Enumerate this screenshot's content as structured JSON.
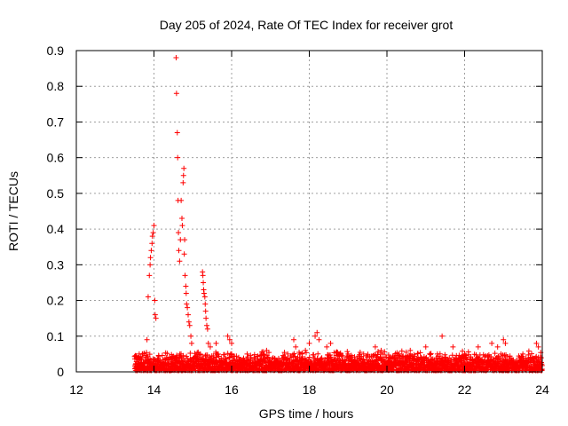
{
  "chart_data": {
    "type": "scatter",
    "title": "Day 205 of 2024, Rate Of TEC Index for receiver grot",
    "xlabel": "GPS time / hours",
    "ylabel": "ROTI / TECUs",
    "xlim": [
      12,
      24
    ],
    "ylim": [
      0,
      0.9
    ],
    "x_ticks": [
      12,
      14,
      16,
      18,
      20,
      22,
      24
    ],
    "y_ticks": [
      0,
      0.1,
      0.2,
      0.3,
      0.4,
      0.5,
      0.6,
      0.7,
      0.8,
      0.9
    ],
    "grid": true,
    "marker": "+",
    "series": [
      {
        "name": "ROTI",
        "color": "#ff0000",
        "baseline_range_hours": [
          13.5,
          24.0
        ],
        "baseline_typical_max": 0.06,
        "points": [
          {
            "x": 13.55,
            "y": 0.04
          },
          {
            "x": 13.62,
            "y": 0.05
          },
          {
            "x": 13.7,
            "y": 0.05
          },
          {
            "x": 13.82,
            "y": 0.09
          },
          {
            "x": 13.85,
            "y": 0.21
          },
          {
            "x": 13.88,
            "y": 0.27
          },
          {
            "x": 13.9,
            "y": 0.3
          },
          {
            "x": 13.91,
            "y": 0.32
          },
          {
            "x": 13.93,
            "y": 0.34
          },
          {
            "x": 13.95,
            "y": 0.36
          },
          {
            "x": 13.96,
            "y": 0.38
          },
          {
            "x": 13.98,
            "y": 0.39
          },
          {
            "x": 14.0,
            "y": 0.41
          },
          {
            "x": 14.02,
            "y": 0.2
          },
          {
            "x": 14.03,
            "y": 0.16
          },
          {
            "x": 14.05,
            "y": 0.15
          },
          {
            "x": 14.55,
            "y": 0.03
          },
          {
            "x": 14.57,
            "y": 0.88
          },
          {
            "x": 14.58,
            "y": 0.78
          },
          {
            "x": 14.6,
            "y": 0.67
          },
          {
            "x": 14.61,
            "y": 0.6
          },
          {
            "x": 14.62,
            "y": 0.48
          },
          {
            "x": 14.63,
            "y": 0.39
          },
          {
            "x": 14.64,
            "y": 0.34
          },
          {
            "x": 14.66,
            "y": 0.31
          },
          {
            "x": 14.68,
            "y": 0.37
          },
          {
            "x": 14.7,
            "y": 0.48
          },
          {
            "x": 14.72,
            "y": 0.43
          },
          {
            "x": 14.73,
            "y": 0.41
          },
          {
            "x": 14.75,
            "y": 0.53
          },
          {
            "x": 14.76,
            "y": 0.55
          },
          {
            "x": 14.77,
            "y": 0.57
          },
          {
            "x": 14.78,
            "y": 0.33
          },
          {
            "x": 14.79,
            "y": 0.37
          },
          {
            "x": 14.8,
            "y": 0.27
          },
          {
            "x": 14.82,
            "y": 0.24
          },
          {
            "x": 14.83,
            "y": 0.22
          },
          {
            "x": 14.84,
            "y": 0.19
          },
          {
            "x": 14.86,
            "y": 0.18
          },
          {
            "x": 14.88,
            "y": 0.16
          },
          {
            "x": 14.9,
            "y": 0.14
          },
          {
            "x": 14.92,
            "y": 0.13
          },
          {
            "x": 14.95,
            "y": 0.1
          },
          {
            "x": 14.97,
            "y": 0.08
          },
          {
            "x": 15.25,
            "y": 0.28
          },
          {
            "x": 15.26,
            "y": 0.27
          },
          {
            "x": 15.27,
            "y": 0.25
          },
          {
            "x": 15.28,
            "y": 0.23
          },
          {
            "x": 15.29,
            "y": 0.22
          },
          {
            "x": 15.31,
            "y": 0.21
          },
          {
            "x": 15.32,
            "y": 0.19
          },
          {
            "x": 15.33,
            "y": 0.17
          },
          {
            "x": 15.34,
            "y": 0.15
          },
          {
            "x": 15.36,
            "y": 0.13
          },
          {
            "x": 15.38,
            "y": 0.12
          },
          {
            "x": 15.4,
            "y": 0.08
          },
          {
            "x": 15.45,
            "y": 0.07
          },
          {
            "x": 15.6,
            "y": 0.08
          },
          {
            "x": 15.9,
            "y": 0.1
          },
          {
            "x": 15.95,
            "y": 0.09
          },
          {
            "x": 16.0,
            "y": 0.08
          },
          {
            "x": 16.4,
            "y": 0.05
          },
          {
            "x": 16.9,
            "y": 0.06
          },
          {
            "x": 17.6,
            "y": 0.09
          },
          {
            "x": 17.65,
            "y": 0.07
          },
          {
            "x": 17.9,
            "y": 0.06
          },
          {
            "x": 18.0,
            "y": 0.08
          },
          {
            "x": 18.15,
            "y": 0.1
          },
          {
            "x": 18.2,
            "y": 0.11
          },
          {
            "x": 18.25,
            "y": 0.09
          },
          {
            "x": 18.45,
            "y": 0.07
          },
          {
            "x": 18.55,
            "y": 0.08
          },
          {
            "x": 19.0,
            "y": 0.05
          },
          {
            "x": 19.4,
            "y": 0.05
          },
          {
            "x": 19.7,
            "y": 0.07
          },
          {
            "x": 19.85,
            "y": 0.06
          },
          {
            "x": 20.2,
            "y": 0.04
          },
          {
            "x": 20.6,
            "y": 0.06
          },
          {
            "x": 21.0,
            "y": 0.07
          },
          {
            "x": 21.1,
            "y": 0.05
          },
          {
            "x": 21.3,
            "y": 0.05
          },
          {
            "x": 21.42,
            "y": 0.1
          },
          {
            "x": 21.7,
            "y": 0.07
          },
          {
            "x": 22.0,
            "y": 0.05
          },
          {
            "x": 22.35,
            "y": 0.07
          },
          {
            "x": 22.7,
            "y": 0.08
          },
          {
            "x": 22.85,
            "y": 0.07
          },
          {
            "x": 23.0,
            "y": 0.09
          },
          {
            "x": 23.05,
            "y": 0.08
          },
          {
            "x": 23.5,
            "y": 0.05
          },
          {
            "x": 23.85,
            "y": 0.08
          },
          {
            "x": 23.9,
            "y": 0.07
          },
          {
            "x": 23.95,
            "y": 0.04
          }
        ]
      }
    ]
  }
}
